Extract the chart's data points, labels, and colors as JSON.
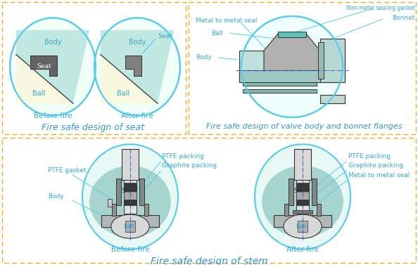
{
  "bg": "#ffffff",
  "orange": "#f5a623",
  "cyan": "#55ccee",
  "label_c": "#33aacc",
  "title_c": "#3399cc",
  "body_teal": "#b8dcd8",
  "body_teal2": "#c8ede8",
  "ball_cream": "#f8f8e8",
  "seat_dark": "#606060",
  "metal_gray": "#909090",
  "stem_light": "#d0d0d0",
  "graphite": "#444444",
  "line_dark": "#333333",
  "gasket_teal": "#70c8c0",
  "title_seat": "Fire safe design of seat",
  "title_valve": "Fire safe design of valve body and bonnet flanges",
  "title_stem": "Fire safe design of stem",
  "before": "Before fire",
  "after": "After fire"
}
